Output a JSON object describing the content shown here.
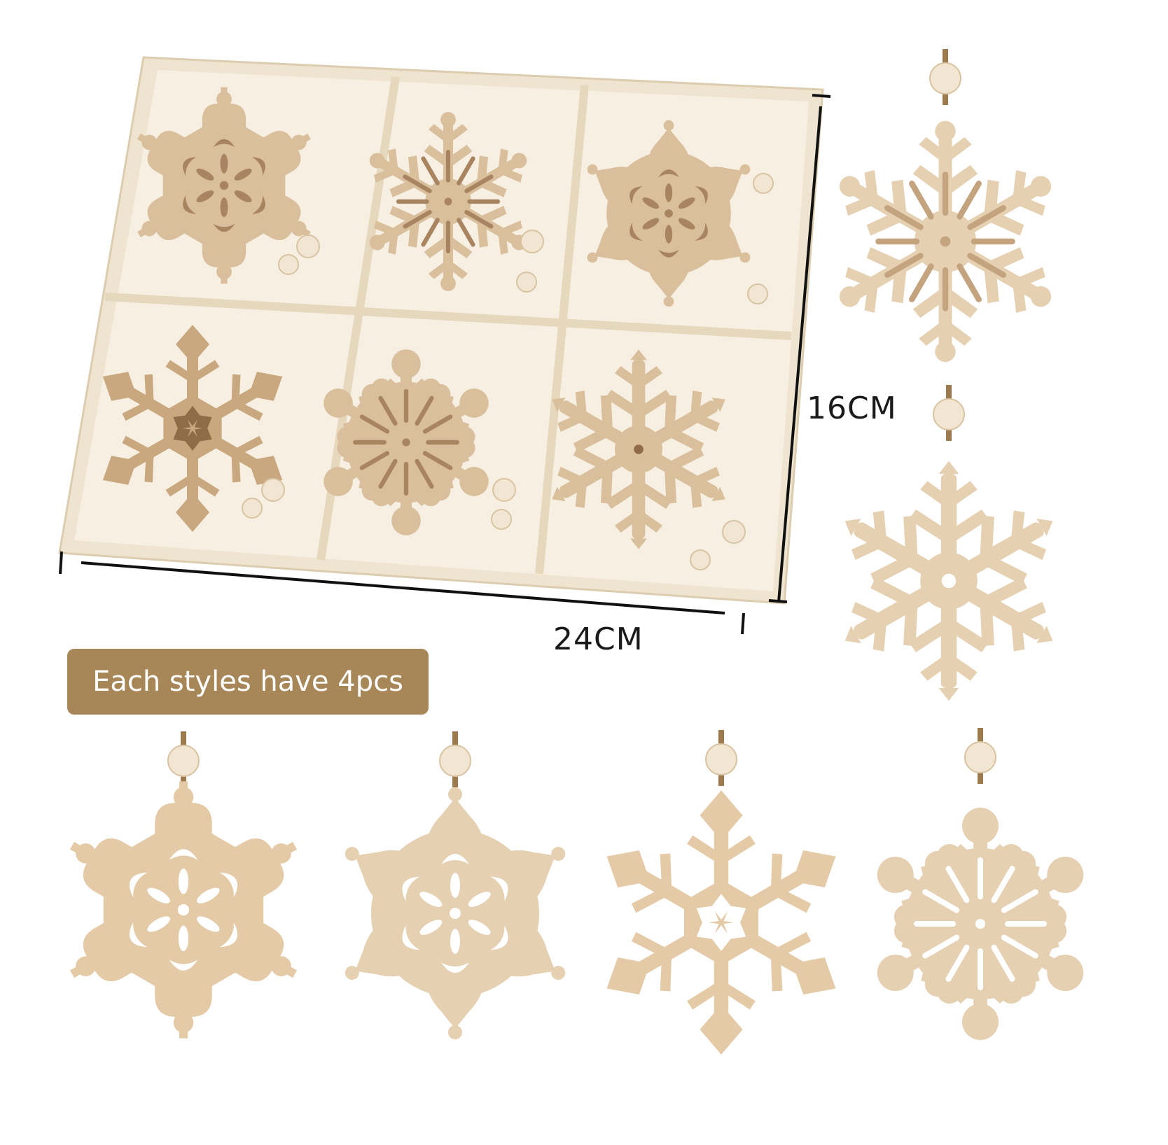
{
  "dimensions": {
    "width_label": "24CM",
    "height_label": "16CM"
  },
  "badge": {
    "text": "Each styles have 4pcs"
  },
  "colors": {
    "wood_light": "#ead9c2",
    "wood_mid": "#d9bf9c",
    "wood_dark": "#b89670",
    "box_frame": "#efe4cf",
    "box_inner": "#f6efe2",
    "twine": "#9d7a4d",
    "bead": "#f2e6d2",
    "badge_bg": "#a78657",
    "badge_text": "#ffffff"
  },
  "box": {
    "compartments": [
      {
        "style": "scroll-hex"
      },
      {
        "style": "fern"
      },
      {
        "style": "lace"
      },
      {
        "style": "diamond"
      },
      {
        "style": "round-star"
      },
      {
        "style": "classic"
      }
    ]
  },
  "loose_ornaments": [
    {
      "style": "fern"
    },
    {
      "style": "classic"
    },
    {
      "style": "scroll-hex"
    },
    {
      "style": "lace"
    },
    {
      "style": "diamond"
    },
    {
      "style": "round-star"
    }
  ]
}
